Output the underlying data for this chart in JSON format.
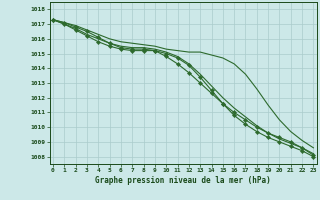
{
  "hours": [
    0,
    1,
    2,
    3,
    4,
    5,
    6,
    7,
    8,
    9,
    10,
    11,
    12,
    13,
    14,
    15,
    16,
    17,
    18,
    19,
    20,
    21,
    22,
    23
  ],
  "line1": [
    1017.3,
    1017.1,
    1016.8,
    1016.5,
    1016.1,
    1015.7,
    1015.4,
    1015.3,
    1015.3,
    1015.2,
    1014.8,
    1014.3,
    1013.7,
    1013.0,
    1012.3,
    1011.6,
    1011.0,
    1010.5,
    1010.0,
    1009.6,
    1009.3,
    1009.0,
    1008.6,
    1008.1
  ],
  "line2": [
    1017.3,
    1017.1,
    1016.9,
    1016.6,
    1016.3,
    1016.0,
    1015.8,
    1015.7,
    1015.6,
    1015.5,
    1015.3,
    1015.2,
    1015.1,
    1015.1,
    1014.9,
    1014.7,
    1014.3,
    1013.6,
    1012.6,
    1011.5,
    1010.5,
    1009.7,
    1009.1,
    1008.6
  ],
  "line3": [
    1017.3,
    1017.0,
    1016.7,
    1016.3,
    1016.0,
    1015.7,
    1015.5,
    1015.4,
    1015.4,
    1015.3,
    1015.1,
    1014.8,
    1014.3,
    1013.6,
    1012.8,
    1012.0,
    1011.3,
    1010.7,
    1010.1,
    1009.6,
    1009.2,
    1008.9,
    1008.6,
    1008.2
  ],
  "line4": [
    1017.3,
    1017.0,
    1016.6,
    1016.2,
    1015.8,
    1015.5,
    1015.3,
    1015.2,
    1015.2,
    1015.2,
    1015.0,
    1014.7,
    1014.2,
    1013.4,
    1012.5,
    1011.6,
    1010.8,
    1010.2,
    1009.7,
    1009.3,
    1009.0,
    1008.7,
    1008.4,
    1008.0
  ],
  "ylim": [
    1007.5,
    1018.5
  ],
  "yticks": [
    1008,
    1009,
    1010,
    1011,
    1012,
    1013,
    1014,
    1015,
    1016,
    1017,
    1018
  ],
  "xlim": [
    -0.3,
    23.3
  ],
  "xlabel": "Graphe pression niveau de la mer (hPa)",
  "line_color": "#2d6a2d",
  "bg_color": "#cce8e8",
  "grid_color": "#aacccc",
  "label_color": "#1a4a1a",
  "marker": "D",
  "markersize": 2.2,
  "linewidth": 0.8
}
